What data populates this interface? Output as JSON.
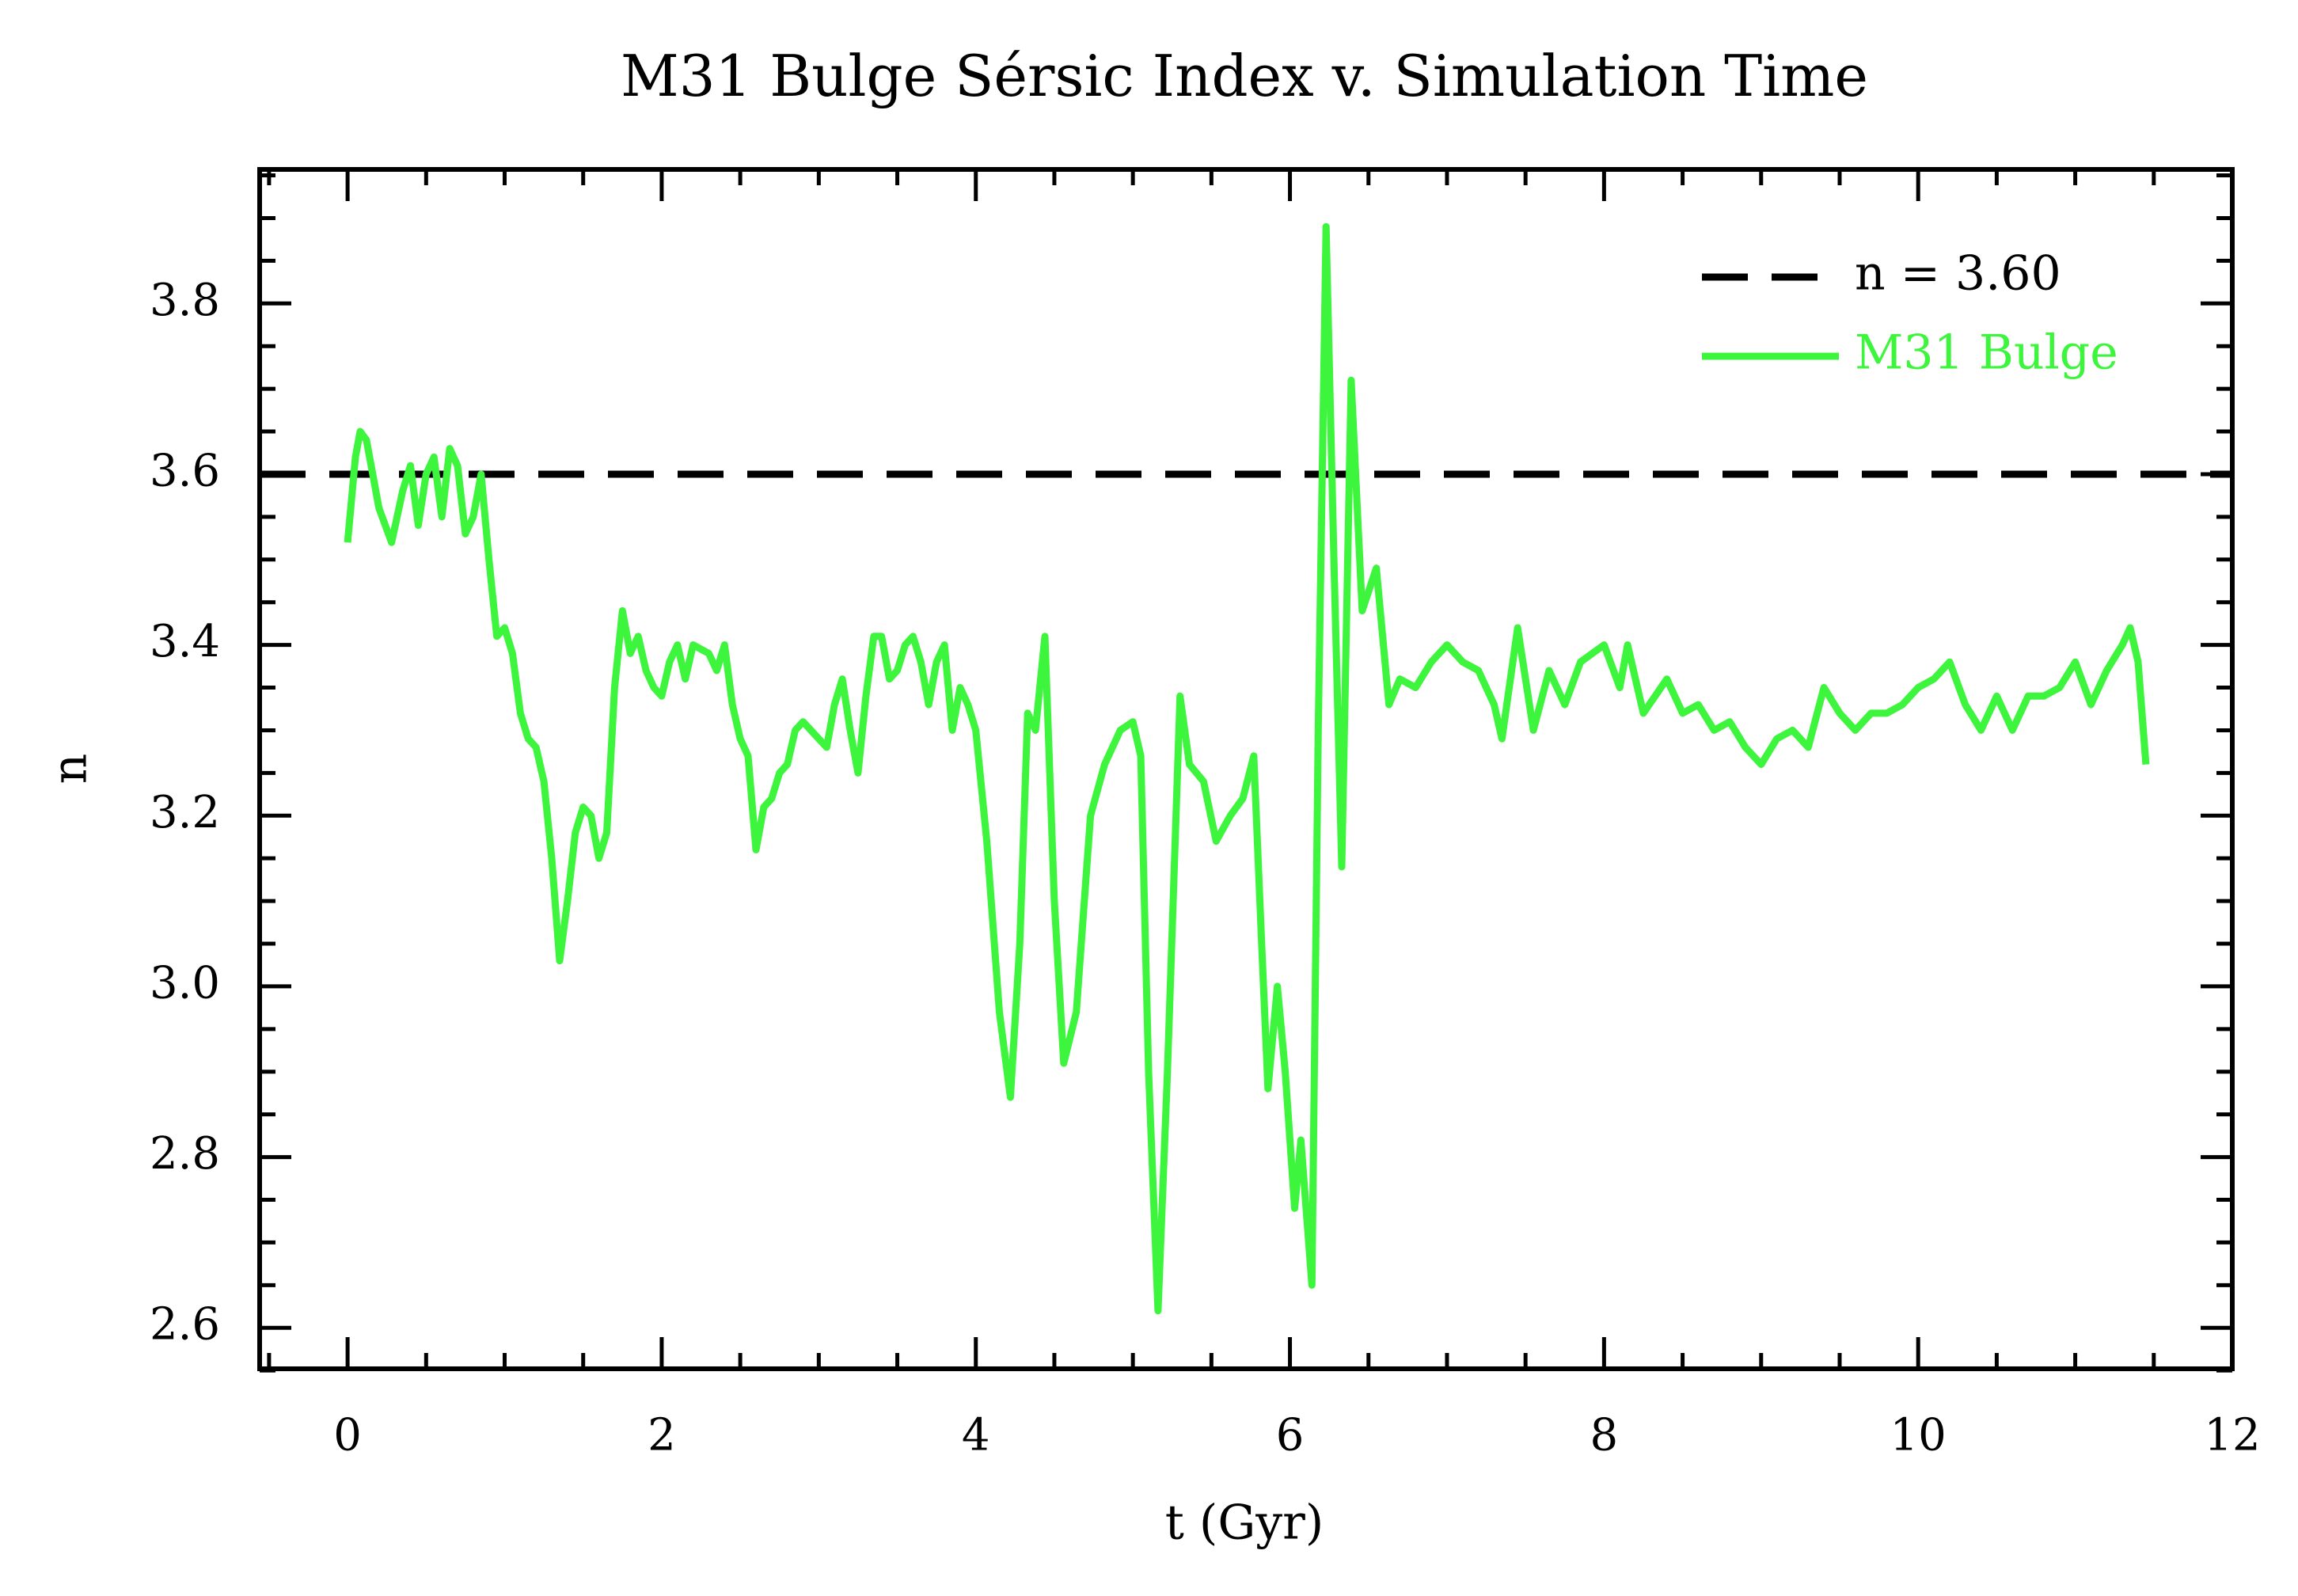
{
  "chart_data": {
    "type": "line",
    "title": "M31 Bulge Sérsic Index v. Simulation Time",
    "x_label": "t (Gyr)",
    "y_label": "n",
    "xlim": [
      -0.56,
      12
    ],
    "ylim": [
      2.552,
      3.957
    ],
    "xticks": [
      0,
      2,
      4,
      6,
      8,
      10,
      12
    ],
    "yticks": [
      {
        "value": 2.6,
        "label": "2.6"
      },
      {
        "value": 2.8,
        "label": "2.8"
      },
      {
        "value": 3.0,
        "label": "3.0"
      },
      {
        "value": 3.2,
        "label": "3.2"
      },
      {
        "value": 3.4,
        "label": "3.4"
      },
      {
        "value": 3.6,
        "label": "3.6"
      },
      {
        "value": 3.8,
        "label": "3.8"
      }
    ],
    "xminorticks": [
      -0.5,
      0.5,
      1,
      1.5,
      2.5,
      3,
      3.5,
      4.5,
      5,
      5.5,
      6.5,
      7,
      7.5,
      8.5,
      9,
      9.5,
      10.5,
      11,
      11.5
    ],
    "yminorticks": [
      2.55,
      2.65,
      2.7,
      2.75,
      2.85,
      2.9,
      2.95,
      3.05,
      3.1,
      3.15,
      3.25,
      3.3,
      3.35,
      3.45,
      3.5,
      3.55,
      3.65,
      3.7,
      3.75,
      3.85,
      3.9,
      3.95
    ],
    "grid": false,
    "legend": "upper right",
    "hlines": [
      {
        "name": "n = 3.60",
        "value": 3.6,
        "color": "#000000",
        "dashed": true
      }
    ],
    "x": [
      0,
      0.05,
      0.08,
      0.12,
      0.2,
      0.28,
      0.35,
      0.4,
      0.45,
      0.5,
      0.55,
      0.6,
      0.65,
      0.7,
      0.75,
      0.8,
      0.85,
      0.9,
      0.95,
      1.0,
      1.05,
      1.1,
      1.15,
      1.2,
      1.25,
      1.3,
      1.35,
      1.4,
      1.45,
      1.5,
      1.55,
      1.6,
      1.65,
      1.7,
      1.75,
      1.8,
      1.85,
      1.9,
      1.95,
      2.0,
      2.05,
      2.1,
      2.15,
      2.2,
      2.3,
      2.35,
      2.4,
      2.45,
      2.5,
      2.55,
      2.6,
      2.65,
      2.7,
      2.75,
      2.8,
      2.85,
      2.9,
      2.95,
      3.0,
      3.05,
      3.1,
      3.15,
      3.2,
      3.25,
      3.3,
      3.35,
      3.4,
      3.45,
      3.5,
      3.55,
      3.6,
      3.65,
      3.7,
      3.75,
      3.8,
      3.85,
      3.9,
      3.95,
      4.0,
      4.07,
      4.15,
      4.22,
      4.28,
      4.33,
      4.38,
      4.44,
      4.5,
      4.56,
      4.64,
      4.73,
      4.82,
      4.92,
      5.0,
      5.05,
      5.1,
      5.16,
      5.22,
      5.3,
      5.36,
      5.45,
      5.53,
      5.62,
      5.7,
      5.77,
      5.82,
      5.86,
      5.92,
      5.97,
      6.03,
      6.07,
      6.14,
      6.18,
      6.23,
      6.28,
      6.33,
      6.39,
      6.46,
      6.55,
      6.63,
      6.7,
      6.8,
      6.9,
      7.0,
      7.1,
      7.2,
      7.3,
      7.35,
      7.45,
      7.55,
      7.65,
      7.75,
      7.85,
      8.0,
      8.1,
      8.15,
      8.25,
      8.4,
      8.5,
      8.6,
      8.7,
      8.8,
      8.9,
      9.0,
      9.1,
      9.2,
      9.3,
      9.4,
      9.5,
      9.6,
      9.7,
      9.8,
      9.9,
      10.0,
      10.1,
      10.2,
      10.3,
      10.4,
      10.5,
      10.6,
      10.7,
      10.8,
      10.9,
      11.0,
      11.1,
      11.2,
      11.3,
      11.35,
      11.4,
      11.45
    ],
    "series": [
      {
        "name": "M31 Bulge",
        "color": "#3cf53c",
        "values": [
          3.52,
          3.62,
          3.65,
          3.64,
          3.56,
          3.52,
          3.58,
          3.61,
          3.54,
          3.6,
          3.62,
          3.55,
          3.63,
          3.61,
          3.53,
          3.55,
          3.6,
          3.5,
          3.41,
          3.42,
          3.39,
          3.32,
          3.29,
          3.28,
          3.24,
          3.15,
          3.03,
          3.1,
          3.18,
          3.21,
          3.2,
          3.15,
          3.18,
          3.35,
          3.44,
          3.39,
          3.41,
          3.37,
          3.35,
          3.34,
          3.38,
          3.4,
          3.36,
          3.4,
          3.39,
          3.37,
          3.4,
          3.33,
          3.29,
          3.27,
          3.16,
          3.21,
          3.22,
          3.25,
          3.26,
          3.3,
          3.31,
          3.3,
          3.29,
          3.28,
          3.33,
          3.36,
          3.3,
          3.25,
          3.34,
          3.41,
          3.41,
          3.36,
          3.37,
          3.4,
          3.41,
          3.38,
          3.33,
          3.38,
          3.4,
          3.3,
          3.35,
          3.33,
          3.3,
          3.17,
          2.97,
          2.87,
          3.05,
          3.32,
          3.3,
          3.41,
          3.1,
          2.91,
          2.97,
          3.2,
          3.26,
          3.3,
          3.31,
          3.27,
          2.9,
          2.62,
          2.9,
          3.34,
          3.26,
          3.24,
          3.17,
          3.2,
          3.22,
          3.27,
          3.05,
          2.88,
          3.0,
          2.9,
          2.74,
          2.82,
          2.65,
          3.3,
          3.89,
          3.5,
          3.14,
          3.71,
          3.44,
          3.49,
          3.33,
          3.36,
          3.35,
          3.38,
          3.4,
          3.38,
          3.37,
          3.33,
          3.29,
          3.42,
          3.3,
          3.37,
          3.33,
          3.38,
          3.4,
          3.35,
          3.4,
          3.32,
          3.36,
          3.32,
          3.33,
          3.3,
          3.31,
          3.28,
          3.26,
          3.29,
          3.3,
          3.28,
          3.35,
          3.32,
          3.3,
          3.32,
          3.32,
          3.33,
          3.35,
          3.36,
          3.38,
          3.33,
          3.3,
          3.34,
          3.3,
          3.34,
          3.34,
          3.35,
          3.38,
          3.33,
          3.37,
          3.4,
          3.42,
          3.38,
          3.26
        ]
      }
    ]
  }
}
